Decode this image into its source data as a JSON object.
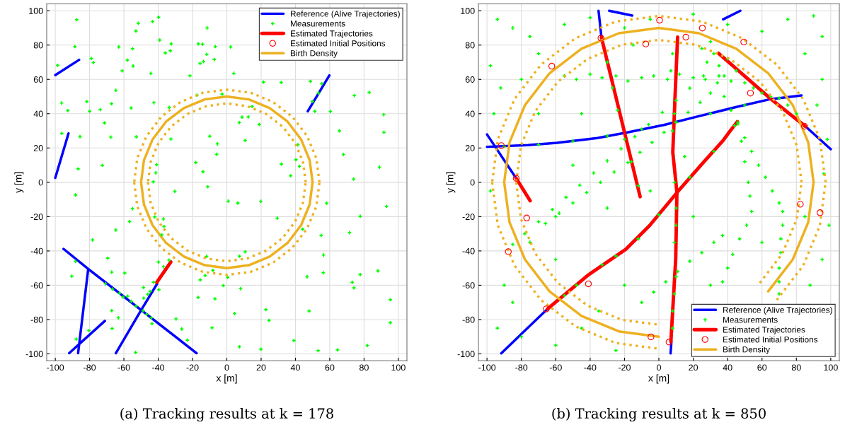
{
  "chart_data": [
    {
      "type": "line",
      "xlabel": "x [m]",
      "ylabel": "y [m]",
      "xlim": [
        -105,
        105
      ],
      "ylim": [
        -104,
        104
      ],
      "xticks": [
        -100,
        -80,
        -60,
        -40,
        -20,
        0,
        20,
        40,
        60,
        80,
        100
      ],
      "yticks": [
        -100,
        -80,
        -60,
        -40,
        -20,
        0,
        20,
        40,
        60,
        80,
        100
      ],
      "grid": true,
      "legend": "top right",
      "annotations": [
        "(a) Tracking results at k = 178"
      ],
      "series": [
        {
          "name": "Reference (Alive Trajectories)",
          "color": "#0000ff",
          "x": [
            -100,
            -86.1,
            null,
            -100,
            -92.3,
            null,
            47.2,
            59.8,
            null,
            -95.2,
            -80.8,
            -17.6,
            null,
            -80.8,
            -86.7,
            null,
            -91.9,
            -71.1,
            null,
            -64.7,
            -50.2,
            -40.6
          ],
          "values": [
            62.5,
            71.4,
            null,
            2.6,
            28.5,
            null,
            41.4,
            62.3,
            null,
            -38.8,
            -50.5,
            -99.6,
            null,
            -50.5,
            -99.6,
            null,
            -99.6,
            -80.8,
            null,
            -99.6,
            -74.9,
            -59.1
          ]
        },
        {
          "name": "Measurements",
          "type": "scatter",
          "marker": "cross",
          "color": "#00ff00",
          "x": [
            -87.5,
            -88.6,
            -51.6,
            -43.3,
            -39.8,
            -53,
            -11.5,
            -39.1,
            -63,
            -54.9,
            -32.4,
            -16.6,
            -14.1,
            -6.7,
            2.2,
            -35.9,
            -33,
            -11.7,
            -79,
            -77.8,
            -98.6,
            -58,
            -54.6,
            -61,
            -44.3,
            -21.5,
            -15.6,
            -13.6,
            -7.3,
            4.1,
            21.4,
            31.7,
            48.7,
            -64.7,
            -96.3,
            -92.7,
            -81.6,
            -80,
            -73.8,
            -67.2,
            -55.8,
            -42.5,
            -33.6,
            -17.4,
            -2.7,
            14.7,
            8.9,
            12.5,
            7.3,
            18.9,
            51.3,
            60.4,
            74.3,
            83,
            91.5,
            65.6,
            91.6,
            55.4,
            53.4,
            49.9,
            -71.3,
            -96.2,
            -85.6,
            -67.6,
            -52.8,
            -32.6,
            -9.9,
            -5.5,
            -5.9,
            10.7,
            41.4,
            68,
            -18.1,
            -13.9,
            -11.1,
            31.8,
            40.3,
            42.4,
            37.2,
            89,
            73.9,
            -40.9,
            -41.4,
            -42.9,
            -72.6,
            -86.7,
            -88.2,
            -30.3,
            0.8,
            6.4,
            19.8,
            58.2,
            93.1,
            -55,
            -56.7,
            -42,
            -37,
            -36.6,
            -37.9,
            -64.7,
            29.4,
            77.8,
            44.2,
            55,
            71.5,
            -78.3,
            -69.4,
            -88.2,
            -90.4,
            -67.1,
            -59.5,
            -11.8,
            7.4,
            10.7,
            -8.1,
            -12.6,
            -15.5,
            0.5,
            56.4,
            56.2,
            46.8,
            88.1,
            77.8,
            73.1,
            74.1,
            -2.1,
            8,
            -16.7,
            -6.9,
            95.3,
            4.5,
            22.8,
            24.6,
            48,
            95.3,
            -29.6,
            -26.3,
            -23,
            -8.6,
            7.4,
            19.9,
            39.1,
            53.2,
            64.5,
            81.9,
            -53.2,
            -87.8,
            -80.4,
            -66.9,
            -63.2,
            -67.1,
            -70.8,
            -66.7,
            -62.6,
            -60.5,
            -57.8,
            -55.7,
            -53,
            -48.8,
            -46.8,
            -44,
            -43.6,
            -48.4,
            -46.1,
            -44.7,
            -42.7,
            -39.6,
            -39.9,
            -36.9,
            -33.7,
            -48.6
          ],
          "values": [
            94.8,
            79.1,
            92.7,
            93.7,
            96.2,
            88.2,
            90,
            82.9,
            78.9,
            77.9,
            80.7,
            80.7,
            80.5,
            79.1,
            78.9,
            75.4,
            76.7,
            74.6,
            72.2,
            69.8,
            68.2,
            71.2,
            67.8,
            65,
            63.5,
            62.1,
            69.3,
            70.4,
            71.6,
            63.5,
            58.4,
            58.2,
            58.8,
            53.6,
            46.2,
            41.8,
            47.1,
            41.4,
            42.4,
            45.8,
            43.3,
            46.4,
            43.6,
            50.8,
            51.4,
            44.2,
            38,
            38.1,
            34.8,
            33.7,
            41.4,
            41.3,
            50.6,
            52.4,
            39.4,
            30,
            29.1,
            57.5,
            52,
            47.2,
            34.6,
            28.5,
            26.6,
            26.3,
            26.5,
            25.2,
            26.9,
            22.4,
            16.3,
            24.4,
            21.9,
            16.2,
            11.5,
            6.2,
            -2.6,
            10.6,
            13.2,
            9.3,
            3.8,
            8.8,
            1.9,
            10.3,
            5.5,
            0.3,
            9.9,
            7.8,
            -7.4,
            -5.2,
            -11,
            -12.1,
            -11.1,
            -12.2,
            -14,
            -15.4,
            -22.9,
            -20.2,
            -21.4,
            -25.8,
            -30.6,
            -27.8,
            -20.9,
            -19.8,
            -27.3,
            -30.9,
            -29.4,
            -33.6,
            -44.2,
            -46.1,
            -54.7,
            -52.4,
            -52.9,
            -43.2,
            -43.1,
            -40.5,
            -51.3,
            -54.3,
            -56.9,
            -55.4,
            -42.4,
            -52.7,
            -55.1,
            -51.6,
            -53.8,
            -58.3,
            -61.5,
            -60.2,
            -62,
            -67.1,
            -67.9,
            -68.4,
            -76.5,
            -74.2,
            -80.5,
            -75,
            -81.8,
            -79.6,
            -85.5,
            -92,
            -84.8,
            -95.9,
            -97.3,
            -92.2,
            -98.1,
            -97.7,
            -95.1,
            -99.2,
            -91.4,
            -86.4,
            -85.2,
            -79,
            -74.8,
            -59.1,
            -62.3,
            -64.6,
            -66.9,
            -66.4,
            -69.4,
            -72.2,
            -74.9,
            -77,
            -79,
            -82.4,
            -67.5,
            -65.3,
            -63.6,
            -58.2,
            -62.6,
            -46.5,
            -49.2,
            -45.4,
            -61.3
          ]
        },
        {
          "name": "Estimated Trajectories",
          "color": "#ff0000",
          "x": [
            -40.9,
            -32.6
          ],
          "values": [
            -58.4,
            -46.4
          ]
        },
        {
          "name": "Estimated Initial Positions",
          "type": "scatter",
          "marker": "circle",
          "color": "#ff0000"
        },
        {
          "name": "Birth Density",
          "color": "#edb120",
          "x": [
            50,
            48.3,
            43.3,
            35.4,
            25,
            12.9,
            0,
            -12.9,
            -25,
            -35.4,
            -43.3,
            -48.3,
            -50,
            null,
            -50,
            -48.3,
            -43.3,
            -35.4,
            -25,
            -12.9,
            0,
            12.9,
            25,
            35.4,
            43.3,
            48.3,
            50
          ],
          "values": [
            0,
            12.9,
            25,
            35.4,
            43.3,
            48.3,
            50,
            48.3,
            43.3,
            35.4,
            25,
            12.9,
            0,
            null,
            0,
            -12.9,
            -25,
            -35.4,
            -43.3,
            -48.3,
            -50,
            -48.3,
            -43.3,
            -35.4,
            -25,
            -12.9,
            0
          ]
        },
        {
          "line_style": "dotted",
          "color": "#edb120",
          "x": [
            54,
            52.2,
            46.8,
            38.2,
            27,
            14,
            0,
            -14,
            -27,
            -38.2,
            -46.8,
            -52.2,
            -54,
            null,
            -54,
            -52.2,
            -46.8,
            -38.2,
            -27,
            -14,
            0,
            14,
            27,
            38.2,
            46.8,
            52.2,
            54
          ],
          "values": [
            0,
            14,
            27,
            38.2,
            46.8,
            52.2,
            54,
            52.2,
            46.8,
            38.2,
            27,
            14,
            0,
            null,
            0,
            -14,
            -27,
            -38.2,
            -46.8,
            -52.2,
            -54,
            -52.2,
            -46.8,
            -38.2,
            -27,
            -14,
            0
          ]
        },
        {
          "line_style": "dotted",
          "color": "#edb120",
          "x": [
            46,
            44.4,
            39.8,
            32.5,
            23,
            11.9,
            0,
            -11.9,
            -23,
            -32.5,
            -39.8,
            -44.4,
            -46,
            null,
            -46,
            -44.4,
            -39.8,
            -32.5,
            -23,
            -11.9,
            0,
            11.9,
            23,
            32.5,
            39.8,
            44.4,
            46
          ],
          "values": [
            0,
            11.9,
            23,
            32.5,
            39.8,
            44.4,
            46,
            44.4,
            39.8,
            32.5,
            23,
            11.9,
            0,
            null,
            0,
            -11.9,
            -23,
            -32.5,
            -39.8,
            -44.4,
            -46,
            -44.4,
            -39.8,
            -32.5,
            -23,
            -11.9,
            0
          ]
        }
      ]
    },
    {
      "type": "line",
      "xlabel": "x [m]",
      "ylabel": "y [m]",
      "xlim": [
        -105,
        105
      ],
      "ylim": [
        -104,
        104
      ],
      "xticks": [
        -100,
        -80,
        -60,
        -40,
        -20,
        0,
        20,
        40,
        60,
        80,
        100
      ],
      "yticks": [
        -100,
        -80,
        -60,
        -40,
        -20,
        0,
        20,
        40,
        60,
        80,
        100
      ],
      "grid": true,
      "legend": "bottom right",
      "annotations": [
        "(b) Tracking results at k = 850"
      ],
      "series": [
        {
          "name": "Reference (Alive Trajectories)",
          "color": "#0000ff",
          "x": [
            -100,
            -76.2,
            -59.3,
            -35.8,
            -17.8,
            2.9,
            23.6,
            44.3,
            65.1,
            83,
            null,
            -100,
            -83,
            null,
            84.4,
            100,
            null,
            -35.1,
            -33.4,
            null,
            -28.9,
            -15.5,
            null,
            37.4,
            47.4,
            null,
            -91.7,
            -64.8,
            null,
            6.8,
            7.3
          ],
          "values": [
            20.7,
            21.7,
            23,
            25.8,
            29.2,
            33.4,
            38.6,
            43.7,
            48.5,
            50.6,
            null,
            27.9,
            2.3,
            null,
            33.4,
            19.3,
            null,
            100,
            84.4,
            null,
            100,
            97.2,
            null,
            95,
            100,
            null,
            -99.7,
            -73.8,
            null,
            -99.7,
            -92.8
          ]
        },
        {
          "name": "Measurements",
          "type": "scatter",
          "marker": "cross",
          "color": "#00ff00",
          "x": [
            -55,
            -48,
            -40,
            -33,
            -25,
            -18,
            -10,
            -3,
            5,
            12,
            20,
            27,
            35,
            42,
            -85,
            -78,
            -70,
            -62,
            -54,
            -46,
            -38,
            -30,
            -22,
            -14,
            -6,
            2,
            10,
            18,
            26,
            -66,
            -58,
            -50,
            -42,
            -34,
            -26,
            -18,
            -11,
            -4,
            3,
            10,
            17,
            24,
            30,
            34,
            38,
            42,
            46,
            50,
            54,
            58,
            62,
            66,
            70,
            72,
            72,
            71,
            71,
            70,
            70,
            70,
            46,
            48,
            50,
            52,
            53,
            54,
            51,
            47,
            43,
            40,
            37,
            -10,
            -3,
            4,
            11,
            18,
            25,
            32,
            37,
            8,
            7,
            9,
            8,
            9,
            10,
            10,
            9,
            10,
            9,
            8,
            8,
            -30,
            -27,
            -24,
            -20,
            -16,
            -12,
            -55,
            -48,
            -33,
            -25,
            -12,
            0,
            18,
            32,
            44,
            25,
            28,
            32,
            35,
            38,
            40,
            30,
            45,
            50,
            55,
            60,
            65,
            75,
            80,
            -90,
            -70,
            -50,
            -30,
            -10,
            10,
            30,
            50,
            70,
            -94,
            -85,
            -70,
            -98,
            -92,
            -96,
            -90,
            -94,
            -80,
            -60,
            -45,
            -25,
            -85,
            -98,
            -75,
            -55,
            -40,
            -20,
            -15,
            -5,
            20,
            40,
            60,
            75,
            90,
            95,
            85,
            95,
            92,
            98,
            96,
            99,
            95,
            88,
            -35,
            -60,
            -75,
            -50,
            -45,
            -70,
            -30,
            -5,
            20,
            30,
            60,
            85,
            -20,
            15,
            -80,
            -60
          ],
          "values": [
            62,
            60,
            63,
            61,
            62,
            59,
            61,
            62,
            60,
            63,
            61,
            60,
            62,
            59,
            -36.2,
            -30,
            -23,
            -15.9,
            -8.8,
            -1.7,
            5.4,
            12.5,
            19.5,
            26.6,
            33.7,
            40.8,
            47.8,
            54.9,
            62,
            -24,
            -18,
            -12,
            -6,
            0,
            6,
            11.5,
            17.5,
            23.3,
            29.1,
            35,
            40.8,
            46.6,
            52,
            58,
            50,
            42,
            34,
            26,
            18,
            10,
            3,
            -5,
            -12,
            -17,
            -25,
            -33,
            -41,
            -50,
            -58,
            -65,
            35,
            24,
            12,
            0,
            -8,
            -17,
            -25,
            -33,
            -42,
            -50,
            -58,
            -70,
            -64,
            -58,
            -52,
            -46,
            -41,
            -35,
            -31,
            75,
            65,
            40,
            30,
            0,
            -15,
            -25,
            -35,
            -55,
            -65,
            -75,
            -85,
            70,
            55,
            42,
            25,
            12,
            -2,
            -66,
            -60,
            -48,
            -43,
            -33,
            -19,
            3,
            18,
            33,
            78,
            70,
            75,
            68,
            62,
            72,
            82,
            65,
            58,
            55,
            52,
            50,
            45,
            40,
            21,
            22,
            24,
            27,
            31,
            35,
            40,
            45,
            49,
            95,
            90,
            75,
            68,
            55,
            40,
            -60,
            -85,
            -90,
            -95,
            -85,
            -98,
            -70,
            -5,
            85,
            92,
            96,
            90,
            80,
            95,
            98,
            92,
            88,
            95,
            97,
            85,
            75,
            60,
            45,
            25,
            5,
            -25,
            -45,
            -60,
            -75,
            -45,
            -35,
            10,
            40,
            40,
            -15,
            -5,
            -20,
            -60,
            -35,
            -20,
            -60,
            15,
            60,
            -20
          ]
        },
        {
          "name": "Estimated Trajectories",
          "color": "#ff0000",
          "x": [
            -33.4,
            -10.9,
            null,
            10.9,
            9.5,
            8.1,
            10.5,
            9.8,
            7,
            null,
            34.7,
            65.1,
            85.1,
            null,
            -83,
            -74.9,
            null,
            -64.8,
            -41.3,
            -19.2,
            -5.4,
            11.2,
            25,
            37.4,
            40.9,
            45.7
          ],
          "values": [
            84.4,
            -8.4,
            null,
            84.7,
            52,
            17.5,
            -5.9,
            -44.6,
            -92.8,
            null,
            75.2,
            48.6,
            32.7,
            null,
            2.3,
            -10.8,
            null,
            -73.8,
            -54.2,
            -39,
            -25.2,
            -5.2,
            10.6,
            24.4,
            29.2,
            35.4
          ]
        },
        {
          "name": "Estimated Initial Positions",
          "type": "scatter",
          "marker": "circle",
          "color": "#ff0000",
          "x": [
            0.4,
            25.3,
            15.7,
            -7.6,
            49.4,
            -62.3,
            -33.7,
            -91.7,
            -83,
            -76.9,
            -87.6,
            -41,
            -65.5,
            -4.6,
            5.9,
            82.3,
            93.8,
            84.7,
            53.3
          ],
          "values": [
            94.5,
            89.9,
            84.6,
            80.6,
            81.8,
            67.7,
            84.1,
            21.4,
            2.3,
            -20.8,
            -40.4,
            -59.2,
            -73.8,
            -90.1,
            -93.1,
            -12.8,
            -17.7,
            32.7,
            52
          ]
        },
        {
          "name": "Birth Density",
          "type": "line",
          "color": "#edb120",
          "x": [
            90,
            86.9,
            77.9,
            63.6,
            45,
            23.3,
            0,
            -23.3,
            -45,
            -63.6,
            -77.9,
            -86.9,
            -90,
            null,
            -90,
            -86.9,
            -77.9,
            -63.6,
            -45,
            -23.3,
            0,
            null,
            null,
            63.6,
            77.9,
            86.9,
            90
          ],
          "values": [
            0,
            23.3,
            45,
            63.6,
            77.9,
            86.9,
            90,
            86.9,
            77.9,
            63.6,
            45,
            23.3,
            0,
            null,
            0,
            -23.3,
            -45,
            -63.6,
            -77.9,
            -86.9,
            -90,
            null,
            null,
            -63.6,
            -45,
            -23.3,
            0
          ]
        },
        {
          "type": "line",
          "line_style": "dotted",
          "color": "#edb120",
          "x": [
            97,
            93.7,
            84,
            68.6,
            48.5,
            25.1,
            0,
            -25.1,
            -48.5,
            -68.6,
            -84,
            -93.7,
            -97,
            null,
            -97,
            -93.7,
            -84,
            -68.6,
            -48.5,
            -25.1,
            0,
            null,
            null,
            68.6,
            84,
            93.7,
            97
          ],
          "values": [
            0,
            25.1,
            48.5,
            68.6,
            84,
            93.7,
            97,
            93.7,
            84,
            68.6,
            48.5,
            25.1,
            0,
            null,
            0,
            -25.1,
            -48.5,
            -68.6,
            -84,
            -93.7,
            -97,
            null,
            null,
            -68.6,
            -48.5,
            -25.1,
            0
          ]
        },
        {
          "type": "line",
          "line_style": "dotted",
          "color": "#edb120",
          "x": [
            83,
            80.2,
            71.9,
            58.7,
            41.5,
            21.5,
            0,
            -21.5,
            -41.5,
            -58.7,
            -71.9,
            -80.2,
            -83,
            null,
            -83,
            -80.2,
            -71.9,
            -58.7,
            -41.5,
            -21.5,
            0,
            null,
            null,
            58.7,
            71.9,
            80.2,
            83
          ],
          "values": [
            0,
            21.5,
            41.5,
            58.7,
            71.9,
            80.2,
            83,
            80.2,
            71.9,
            58.7,
            41.5,
            21.5,
            0,
            null,
            0,
            -21.5,
            -41.5,
            -58.7,
            -71.9,
            -80.2,
            -83,
            null,
            null,
            -58.7,
            -41.5,
            -21.5,
            0
          ]
        }
      ]
    }
  ]
}
